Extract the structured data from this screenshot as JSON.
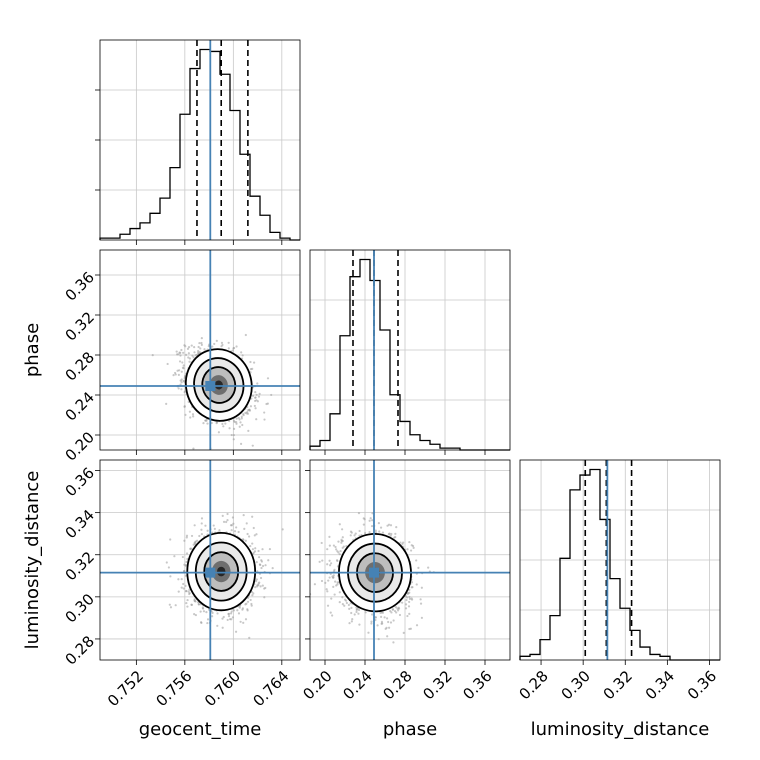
{
  "chart_data": {
    "type": "corner",
    "parameters": [
      {
        "name": "geocent_time",
        "label": "geocent_time",
        "range": [
          0.749,
          0.7655
        ],
        "ticks": [
          0.752,
          0.756,
          0.76,
          0.764
        ],
        "tick_labels": [
          "0.752",
          "0.756",
          "0.760",
          "0.764"
        ],
        "truth": 0.7581,
        "quantiles": [
          0.757,
          0.759,
          0.7612
        ]
      },
      {
        "name": "phase",
        "label": "phase",
        "range": [
          0.185,
          0.385
        ],
        "ticks": [
          0.2,
          0.24,
          0.28,
          0.32,
          0.36
        ],
        "tick_labels": [
          "0.20",
          "0.24",
          "0.28",
          "0.32",
          "0.36"
        ],
        "truth": 0.249,
        "quantiles": [
          0.228,
          0.249,
          0.273
        ]
      },
      {
        "name": "luminosity_distance",
        "label": "luminosity_distance",
        "range": [
          0.27,
          0.365
        ],
        "ticks": [
          0.28,
          0.3,
          0.32,
          0.34,
          0.36
        ],
        "tick_labels": [
          "0.28",
          "0.30",
          "0.32",
          "0.34",
          "0.36"
        ],
        "truth": 0.3115,
        "quantiles": [
          0.301,
          0.311,
          0.323
        ]
      }
    ],
    "histograms": [
      {
        "param": "geocent_time",
        "edges_start": 0.749,
        "bin_width": 0.000825,
        "counts": [
          1,
          1,
          3,
          6,
          9,
          14,
          22,
          38,
          66,
          90,
          100,
          99,
          87,
          68,
          45,
          23,
          13,
          4,
          1,
          0
        ]
      },
      {
        "param": "phase",
        "edges_start": 0.185,
        "bin_width": 0.01,
        "counts": [
          2,
          5,
          19,
          60,
          91,
          100,
          89,
          63,
          29,
          15,
          8,
          5,
          3,
          1,
          1,
          0,
          0,
          0,
          0,
          0
        ]
      },
      {
        "param": "luminosity_distance",
        "edges_start": 0.27,
        "bin_width": 0.00475,
        "counts": [
          2,
          3,
          11,
          24,
          55,
          92,
          100,
          103,
          76,
          44,
          28,
          16,
          7,
          3,
          2,
          0,
          0,
          0,
          0,
          0
        ]
      }
    ],
    "joint_2d": [
      {
        "x": "geocent_time",
        "y": "phase",
        "mean": [
          0.7588,
          0.25
        ],
        "sd": [
          0.00135,
          0.018
        ],
        "corr": -0.3
      },
      {
        "x": "geocent_time",
        "y": "luminosity_distance",
        "mean": [
          0.759,
          0.312
        ],
        "sd": [
          0.0014,
          0.0092
        ],
        "corr": 0.0
      },
      {
        "x": "phase",
        "y": "luminosity_distance",
        "mean": [
          0.25,
          0.3115
        ],
        "sd": [
          0.018,
          0.0092
        ],
        "corr": -0.1
      }
    ],
    "grid": true,
    "truth_color": "#4682b4",
    "quantile_line_style": "dashed",
    "contour_color": "#000000"
  }
}
